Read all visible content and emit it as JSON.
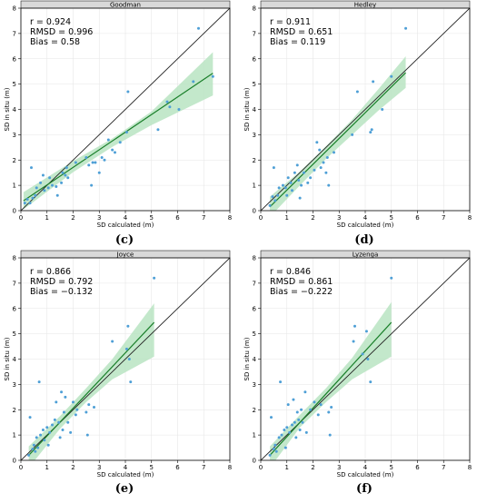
{
  "chart_data": [
    {
      "type": "scatter",
      "panel_label": "(c)",
      "title": "Goodman",
      "xlabel": "SD calculated (m)",
      "ylabel": "SD in situ (m)",
      "xlim": [
        0,
        8
      ],
      "ylim": [
        0,
        8
      ],
      "xticks": [
        0,
        1,
        2,
        3,
        4,
        5,
        6,
        7,
        8
      ],
      "yticks": [
        0,
        1,
        2,
        3,
        4,
        5,
        6,
        7,
        8
      ],
      "stats": [
        "r = 0.924",
        "RMSD = 0.996",
        "Bias = 0.58"
      ],
      "points": [
        [
          0.15,
          0.3
        ],
        [
          0.25,
          0.45
        ],
        [
          0.35,
          0.3
        ],
        [
          0.4,
          1.7
        ],
        [
          0.45,
          0.5
        ],
        [
          0.55,
          0.6
        ],
        [
          0.6,
          0.9
        ],
        [
          0.75,
          1.1
        ],
        [
          0.85,
          1.4
        ],
        [
          0.9,
          0.8
        ],
        [
          1.05,
          0.9
        ],
        [
          1.1,
          1.3
        ],
        [
          1.2,
          1.0
        ],
        [
          1.35,
          0.95
        ],
        [
          1.4,
          0.6
        ],
        [
          1.55,
          1.1
        ],
        [
          1.6,
          1.5
        ],
        [
          1.7,
          1.4
        ],
        [
          1.75,
          1.7
        ],
        [
          1.8,
          1.3
        ],
        [
          2.1,
          1.9
        ],
        [
          2.5,
          2.1
        ],
        [
          2.6,
          1.8
        ],
        [
          2.7,
          1.0
        ],
        [
          2.75,
          1.9
        ],
        [
          2.85,
          1.9
        ],
        [
          3.0,
          1.5
        ],
        [
          3.1,
          2.1
        ],
        [
          3.2,
          2.0
        ],
        [
          3.35,
          2.8
        ],
        [
          3.5,
          2.4
        ],
        [
          3.6,
          2.3
        ],
        [
          3.8,
          2.7
        ],
        [
          4.05,
          3.1
        ],
        [
          4.1,
          4.7
        ],
        [
          5.25,
          3.2
        ],
        [
          5.6,
          4.3
        ],
        [
          5.7,
          4.1
        ],
        [
          6.05,
          4.0
        ],
        [
          6.6,
          5.1
        ],
        [
          6.8,
          7.2
        ],
        [
          7.35,
          5.3
        ]
      ],
      "fit_line": [
        [
          0.1,
          0.39
        ],
        [
          7.35,
          5.43
        ]
      ],
      "confidence_band": {
        "x": [
          0.1,
          2.0,
          3.5,
          5.0,
          7.35
        ],
        "lower": [
          0.05,
          1.52,
          2.52,
          3.38,
          4.55
        ],
        "upper": [
          0.73,
          1.96,
          2.85,
          3.92,
          6.26
        ]
      },
      "identity_line": true,
      "grid": true,
      "point_color": "#4e9fd6",
      "fit_color": "#1a7f2a",
      "band_color": "#b9e4c2"
    },
    {
      "type": "scatter",
      "panel_label": "(d)",
      "title": "Hedley",
      "xlabel": "SD calculated (m)",
      "ylabel": "SD in situ (m)",
      "xlim": [
        0,
        8
      ],
      "ylim": [
        0,
        8
      ],
      "xticks": [
        0,
        1,
        2,
        3,
        4,
        5,
        6,
        7,
        8
      ],
      "yticks": [
        0,
        1,
        2,
        3,
        4,
        5,
        6,
        7,
        8
      ],
      "stats": [
        "r = 0.911",
        "RMSD = 0.651",
        "Bias = 0.119"
      ],
      "points": [
        [
          0.35,
          0.2
        ],
        [
          0.45,
          0.55
        ],
        [
          0.5,
          1.7
        ],
        [
          0.55,
          0.4
        ],
        [
          0.65,
          0.6
        ],
        [
          0.7,
          0.9
        ],
        [
          0.85,
          1.0
        ],
        [
          0.95,
          0.9
        ],
        [
          1.0,
          0.6
        ],
        [
          1.05,
          1.3
        ],
        [
          1.15,
          1.1
        ],
        [
          1.2,
          0.8
        ],
        [
          1.3,
          1.5
        ],
        [
          1.4,
          1.8
        ],
        [
          1.45,
          1.2
        ],
        [
          1.5,
          0.5
        ],
        [
          1.55,
          1.0
        ],
        [
          1.65,
          1.5
        ],
        [
          1.8,
          1.1
        ],
        [
          1.9,
          1.3
        ],
        [
          2.05,
          1.6
        ],
        [
          2.15,
          2.7
        ],
        [
          2.25,
          2.4
        ],
        [
          2.3,
          1.7
        ],
        [
          2.4,
          1.9
        ],
        [
          2.5,
          1.5
        ],
        [
          2.55,
          2.1
        ],
        [
          2.6,
          1.0
        ],
        [
          2.8,
          2.3
        ],
        [
          3.5,
          3.0
        ],
        [
          3.7,
          4.7
        ],
        [
          4.2,
          3.1
        ],
        [
          4.25,
          3.2
        ],
        [
          4.3,
          5.1
        ],
        [
          4.65,
          4.0
        ],
        [
          5.0,
          5.3
        ],
        [
          5.55,
          7.2
        ]
      ],
      "fit_line": [
        [
          0.35,
          0.15
        ],
        [
          5.55,
          5.45
        ]
      ],
      "confidence_band": {
        "x": [
          0.35,
          1.5,
          2.5,
          3.5,
          4.5,
          5.55
        ],
        "lower": [
          -0.25,
          1.0,
          2.05,
          3.0,
          3.95,
          4.85
        ],
        "upper": [
          0.55,
          1.55,
          2.55,
          3.6,
          4.8,
          6.1
        ]
      },
      "identity_line": true,
      "grid": true,
      "point_color": "#4e9fd6",
      "fit_color": "#1a7f2a",
      "band_color": "#b9e4c2"
    },
    {
      "type": "scatter",
      "panel_label": "(e)",
      "title": "Joyce",
      "xlabel": "SD calculated (m)",
      "ylabel": "SD in situ (m)",
      "xlim": [
        0,
        8
      ],
      "ylim": [
        0,
        8
      ],
      "xticks": [
        0,
        1,
        2,
        3,
        4,
        5,
        6,
        7,
        8
      ],
      "yticks": [
        0,
        1,
        2,
        3,
        4,
        5,
        6,
        7,
        8
      ],
      "stats": [
        "r = 0.866",
        "RMSD = 0.792",
        "Bias = −0.132"
      ],
      "points": [
        [
          0.3,
          0.2
        ],
        [
          0.35,
          1.7
        ],
        [
          0.45,
          0.45
        ],
        [
          0.5,
          0.6
        ],
        [
          0.55,
          0.35
        ],
        [
          0.6,
          0.9
        ],
        [
          0.65,
          0.5
        ],
        [
          0.7,
          3.1
        ],
        [
          0.75,
          1.0
        ],
        [
          0.85,
          1.2
        ],
        [
          0.9,
          0.8
        ],
        [
          1.0,
          1.3
        ],
        [
          1.05,
          0.6
        ],
        [
          1.1,
          1.1
        ],
        [
          1.2,
          1.4
        ],
        [
          1.3,
          1.6
        ],
        [
          1.35,
          2.3
        ],
        [
          1.45,
          1.5
        ],
        [
          1.5,
          0.9
        ],
        [
          1.55,
          2.7
        ],
        [
          1.6,
          1.2
        ],
        [
          1.65,
          1.9
        ],
        [
          1.7,
          2.5
        ],
        [
          1.8,
          1.5
        ],
        [
          1.9,
          1.1
        ],
        [
          2.0,
          2.3
        ],
        [
          2.1,
          1.8
        ],
        [
          2.15,
          2.0
        ],
        [
          2.5,
          1.9
        ],
        [
          2.55,
          1.0
        ],
        [
          2.6,
          2.2
        ],
        [
          2.8,
          2.1
        ],
        [
          3.5,
          4.7
        ],
        [
          4.05,
          4.4
        ],
        [
          4.1,
          5.3
        ],
        [
          4.15,
          4.0
        ],
        [
          4.2,
          3.1
        ],
        [
          5.1,
          7.2
        ]
      ],
      "fit_line": [
        [
          0.3,
          0.2
        ],
        [
          5.1,
          5.45
        ]
      ],
      "confidence_band": {
        "x": [
          0.3,
          1.5,
          2.5,
          3.5,
          5.1
        ],
        "lower": [
          -0.3,
          1.25,
          2.3,
          3.2,
          4.1
        ],
        "upper": [
          0.55,
          1.75,
          2.85,
          4.0,
          6.2
        ]
      },
      "identity_line": true,
      "grid": true,
      "point_color": "#4e9fd6",
      "fit_color": "#1a7f2a",
      "band_color": "#b9e4c2"
    },
    {
      "type": "scatter",
      "panel_label": "(f)",
      "title": "Lyzenga",
      "xlabel": "SD calculated (m)",
      "ylabel": "SD in situ (m)",
      "xlim": [
        0,
        8
      ],
      "ylim": [
        0,
        8
      ],
      "xticks": [
        0,
        1,
        2,
        3,
        4,
        5,
        6,
        7,
        8
      ],
      "yticks": [
        0,
        1,
        2,
        3,
        4,
        5,
        6,
        7,
        8
      ],
      "stats": [
        "r = 0.846",
        "RMSD = 0.861",
        "Bias = −0.222"
      ],
      "points": [
        [
          0.35,
          0.2
        ],
        [
          0.4,
          1.7
        ],
        [
          0.5,
          0.45
        ],
        [
          0.55,
          0.6
        ],
        [
          0.6,
          0.35
        ],
        [
          0.7,
          0.9
        ],
        [
          0.75,
          3.1
        ],
        [
          0.8,
          1.0
        ],
        [
          0.9,
          1.2
        ],
        [
          0.95,
          0.5
        ],
        [
          1.0,
          1.3
        ],
        [
          1.05,
          2.2
        ],
        [
          1.1,
          1.1
        ],
        [
          1.2,
          1.4
        ],
        [
          1.25,
          2.4
        ],
        [
          1.3,
          1.5
        ],
        [
          1.35,
          0.9
        ],
        [
          1.4,
          1.9
        ],
        [
          1.45,
          1.6
        ],
        [
          1.5,
          1.2
        ],
        [
          1.55,
          2.0
        ],
        [
          1.6,
          1.5
        ],
        [
          1.7,
          2.7
        ],
        [
          1.75,
          1.1
        ],
        [
          1.9,
          2.0
        ],
        [
          2.05,
          2.3
        ],
        [
          2.2,
          1.8
        ],
        [
          2.3,
          2.2
        ],
        [
          2.6,
          1.9
        ],
        [
          2.65,
          1.0
        ],
        [
          2.7,
          2.1
        ],
        [
          3.55,
          4.7
        ],
        [
          3.6,
          5.3
        ],
        [
          3.9,
          4.2
        ],
        [
          4.05,
          5.1
        ],
        [
          4.1,
          4.0
        ],
        [
          4.2,
          3.1
        ],
        [
          5.0,
          7.2
        ]
      ],
      "fit_line": [
        [
          0.35,
          0.2
        ],
        [
          5.0,
          5.45
        ]
      ],
      "confidence_band": {
        "x": [
          0.35,
          1.5,
          2.5,
          3.5,
          5.0
        ],
        "lower": [
          -0.3,
          1.3,
          2.3,
          3.2,
          4.1
        ],
        "upper": [
          0.55,
          1.8,
          2.85,
          4.05,
          6.25
        ]
      },
      "identity_line": true,
      "grid": true,
      "point_color": "#4e9fd6",
      "fit_color": "#1a7f2a",
      "band_color": "#b9e4c2"
    }
  ]
}
